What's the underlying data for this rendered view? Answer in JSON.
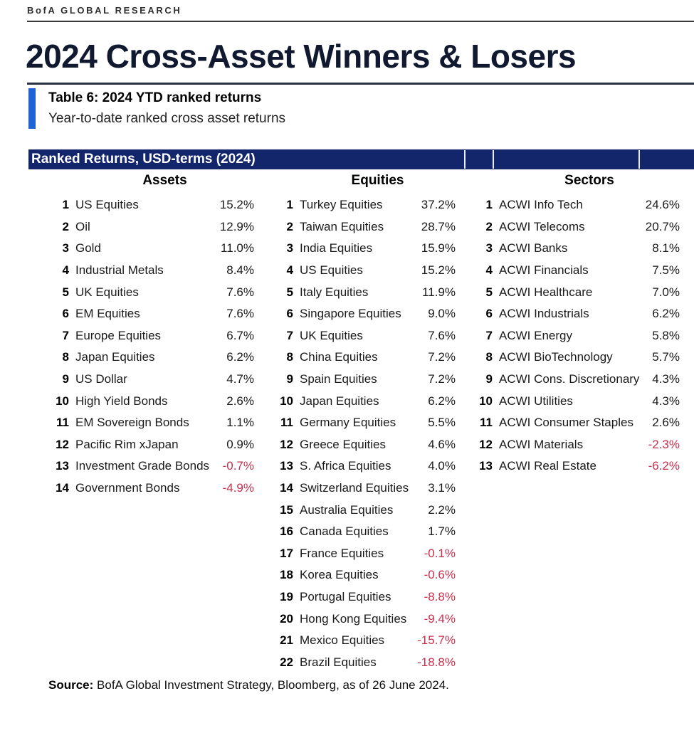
{
  "header": {
    "brand": "BofA GLOBAL RESEARCH",
    "title": "2024 Cross-Asset Winners & Losers",
    "table_label": "Table 6: 2024 YTD ranked returns",
    "table_sublabel": "Year-to-date ranked cross asset returns"
  },
  "table": {
    "banner": "Ranked Returns, USD-terms (2024)",
    "columns": [
      {
        "header": "Assets",
        "rows": [
          {
            "rank": "1",
            "name": "US Equities",
            "value": "15.2%"
          },
          {
            "rank": "2",
            "name": "Oil",
            "value": "12.9%"
          },
          {
            "rank": "3",
            "name": "Gold",
            "value": "11.0%"
          },
          {
            "rank": "4",
            "name": "Industrial Metals",
            "value": "8.4%"
          },
          {
            "rank": "5",
            "name": "UK Equities",
            "value": "7.6%"
          },
          {
            "rank": "6",
            "name": "EM Equities",
            "value": "7.6%"
          },
          {
            "rank": "7",
            "name": "Europe Equities",
            "value": "6.7%"
          },
          {
            "rank": "8",
            "name": "Japan Equities",
            "value": "6.2%"
          },
          {
            "rank": "9",
            "name": "US Dollar",
            "value": "4.7%"
          },
          {
            "rank": "10",
            "name": "High Yield Bonds",
            "value": "2.6%"
          },
          {
            "rank": "11",
            "name": "EM Sovereign Bonds",
            "value": "1.1%"
          },
          {
            "rank": "12",
            "name": "Pacific Rim xJapan",
            "value": "0.9%"
          },
          {
            "rank": "13",
            "name": "Investment Grade Bonds",
            "value": "-0.7%"
          },
          {
            "rank": "14",
            "name": "Government Bonds",
            "value": "-4.9%"
          }
        ]
      },
      {
        "header": "Equities",
        "rows": [
          {
            "rank": "1",
            "name": "Turkey Equities",
            "value": "37.2%"
          },
          {
            "rank": "2",
            "name": "Taiwan Equities",
            "value": "28.7%"
          },
          {
            "rank": "3",
            "name": "India Equities",
            "value": "15.9%"
          },
          {
            "rank": "4",
            "name": "US Equities",
            "value": "15.2%"
          },
          {
            "rank": "5",
            "name": "Italy Equities",
            "value": "11.9%"
          },
          {
            "rank": "6",
            "name": "Singapore Equities",
            "value": "9.0%"
          },
          {
            "rank": "7",
            "name": "UK Equities",
            "value": "7.6%"
          },
          {
            "rank": "8",
            "name": "China Equities",
            "value": "7.2%"
          },
          {
            "rank": "9",
            "name": "Spain Equities",
            "value": "7.2%"
          },
          {
            "rank": "10",
            "name": "Japan Equities",
            "value": "6.2%"
          },
          {
            "rank": "11",
            "name": "Germany Equities",
            "value": "5.5%"
          },
          {
            "rank": "12",
            "name": "Greece Equities",
            "value": "4.6%"
          },
          {
            "rank": "13",
            "name": "S. Africa Equities",
            "value": "4.0%"
          },
          {
            "rank": "14",
            "name": "Switzerland Equities",
            "value": "3.1%"
          },
          {
            "rank": "15",
            "name": "Australia Equities",
            "value": "2.2%"
          },
          {
            "rank": "16",
            "name": "Canada Equities",
            "value": "1.7%"
          },
          {
            "rank": "17",
            "name": "France Equities",
            "value": "-0.1%"
          },
          {
            "rank": "18",
            "name": "Korea Equities",
            "value": "-0.6%"
          },
          {
            "rank": "19",
            "name": "Portugal Equities",
            "value": "-8.8%"
          },
          {
            "rank": "20",
            "name": "Hong Kong Equities",
            "value": "-9.4%"
          },
          {
            "rank": "21",
            "name": "Mexico Equities",
            "value": "-15.7%"
          },
          {
            "rank": "22",
            "name": "Brazil Equities",
            "value": "-18.8%"
          }
        ]
      },
      {
        "header": "Sectors",
        "rows": [
          {
            "rank": "1",
            "name": "ACWI Info Tech",
            "value": "24.6%"
          },
          {
            "rank": "2",
            "name": "ACWI Telecoms",
            "value": "20.7%"
          },
          {
            "rank": "3",
            "name": "ACWI Banks",
            "value": "8.1%"
          },
          {
            "rank": "4",
            "name": "ACWI Financials",
            "value": "7.5%"
          },
          {
            "rank": "5",
            "name": "ACWI Healthcare",
            "value": "7.0%"
          },
          {
            "rank": "6",
            "name": "ACWI Industrials",
            "value": "6.2%"
          },
          {
            "rank": "7",
            "name": "ACWI Energy",
            "value": "5.8%"
          },
          {
            "rank": "8",
            "name": "ACWI BioTechnology",
            "value": "5.7%"
          },
          {
            "rank": "9",
            "name": "ACWI Cons. Discretionary",
            "value": "4.3%"
          },
          {
            "rank": "10",
            "name": "ACWI Utilities",
            "value": "4.3%"
          },
          {
            "rank": "11",
            "name": "ACWI Consumer Staples",
            "value": "2.6%"
          },
          {
            "rank": "12",
            "name": "ACWI Materials",
            "value": "-2.3%"
          },
          {
            "rank": "13",
            "name": "ACWI Real Estate",
            "value": "-6.2%"
          }
        ]
      }
    ]
  },
  "source": {
    "label": "Source:",
    "text": " BofA Global Investment Strategy, Bloomberg, as of 26 June 2024."
  },
  "colors": {
    "banner_navy": "#13266b",
    "accent_blue": "#1e63d6",
    "negative_red": "#c8304d",
    "title_navy": "#10192f",
    "rule_dark": "#3a3a3a"
  }
}
